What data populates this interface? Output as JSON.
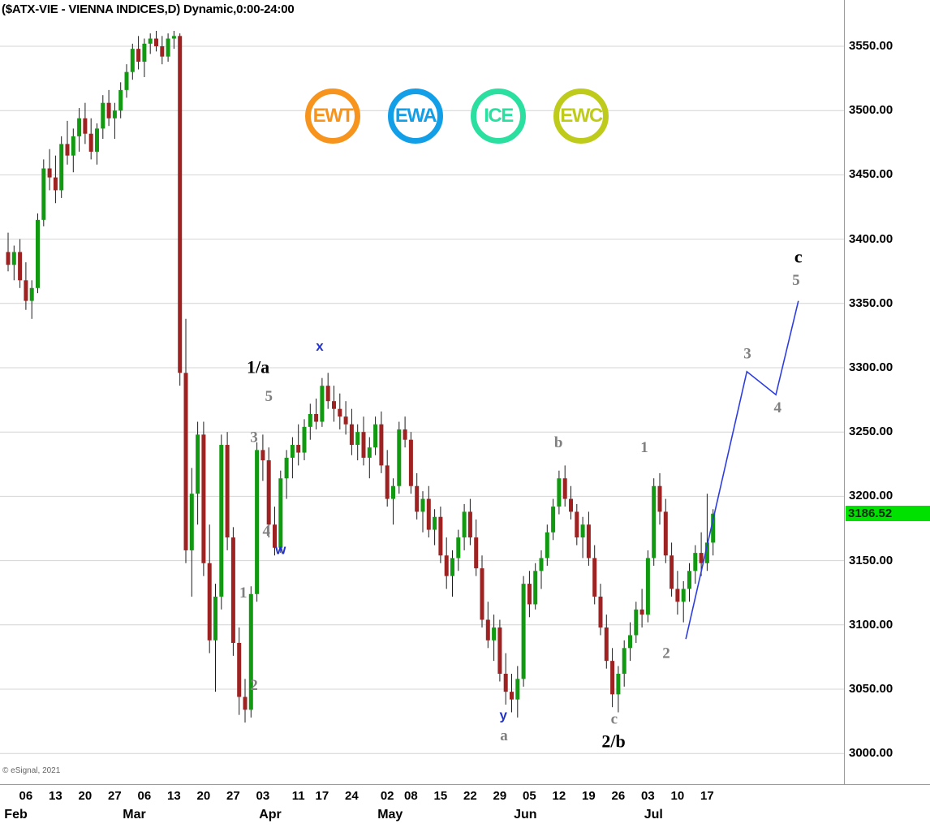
{
  "title": "($ATX-VIE - VIENNA INDICES,D) Dynamic,0:00-24:00",
  "copyright": "© eSignal, 2021",
  "logos": [
    {
      "label": "EWT",
      "color": "#F7941D"
    },
    {
      "label": "EWA",
      "color": "#129FE8"
    },
    {
      "label": "ICE",
      "color": "#2BDFA0"
    },
    {
      "label": "EWC",
      "color": "#BFCB1B"
    }
  ],
  "price_tag": {
    "value": "3186.52",
    "bg": "#00E100",
    "fg": "#002b00"
  },
  "colors": {
    "up": "#119a11",
    "down": "#9e2222",
    "wick": "#1c1c1c",
    "grid": "#d4d4d4",
    "projection": "#2d3de0",
    "label_gray": "#808080",
    "label_blue": "#2233cc",
    "label_black": "#000000"
  },
  "chart_data": {
    "type": "candlestick",
    "symbol": "$ATX-VIE",
    "name": "VIENNA INDICES",
    "interval": "D",
    "session": "0:00-24:00",
    "last_price": 3186.52,
    "y_axis": {
      "ticks": [
        3550,
        3500,
        3450,
        3400,
        3350,
        3300,
        3250,
        3200,
        3150,
        3100,
        3050,
        3000
      ],
      "format": "0.00"
    },
    "x_axis": {
      "week_ticks": [
        {
          "label": "06",
          "day": 3
        },
        {
          "label": "13",
          "day": 8
        },
        {
          "label": "20",
          "day": 13
        },
        {
          "label": "27",
          "day": 18
        },
        {
          "label": "06",
          "day": 23
        },
        {
          "label": "13",
          "day": 28
        },
        {
          "label": "20",
          "day": 33
        },
        {
          "label": "27",
          "day": 38
        },
        {
          "label": "03",
          "day": 43
        },
        {
          "label": "11",
          "day": 49
        },
        {
          "label": "17",
          "day": 53
        },
        {
          "label": "24",
          "day": 58
        },
        {
          "label": "02",
          "day": 64
        },
        {
          "label": "08",
          "day": 68
        },
        {
          "label": "15",
          "day": 73
        },
        {
          "label": "22",
          "day": 78
        },
        {
          "label": "29",
          "day": 83
        },
        {
          "label": "05",
          "day": 88
        },
        {
          "label": "12",
          "day": 93
        },
        {
          "label": "19",
          "day": 98
        },
        {
          "label": "26",
          "day": 103
        },
        {
          "label": "03",
          "day": 108
        },
        {
          "label": "10",
          "day": 113
        },
        {
          "label": "17",
          "day": 118
        }
      ],
      "months": [
        {
          "label": "Feb",
          "day": 1
        },
        {
          "label": "Mar",
          "day": 21
        },
        {
          "label": "Apr",
          "day": 44
        },
        {
          "label": "May",
          "day": 64
        },
        {
          "label": "Jun",
          "day": 87
        },
        {
          "label": "Jul",
          "day": 109
        }
      ]
    },
    "candles": [
      [
        3390,
        3405,
        3375,
        3380
      ],
      [
        3380,
        3395,
        3368,
        3390
      ],
      [
        3390,
        3400,
        3362,
        3368
      ],
      [
        3368,
        3382,
        3345,
        3352
      ],
      [
        3352,
        3368,
        3338,
        3362
      ],
      [
        3362,
        3420,
        3358,
        3415
      ],
      [
        3415,
        3462,
        3410,
        3455
      ],
      [
        3455,
        3470,
        3438,
        3448
      ],
      [
        3448,
        3465,
        3428,
        3438
      ],
      [
        3438,
        3480,
        3432,
        3474
      ],
      [
        3474,
        3492,
        3458,
        3465
      ],
      [
        3465,
        3486,
        3452,
        3480
      ],
      [
        3480,
        3502,
        3468,
        3494
      ],
      [
        3494,
        3506,
        3474,
        3482
      ],
      [
        3482,
        3494,
        3462,
        3468
      ],
      [
        3468,
        3490,
        3458,
        3486
      ],
      [
        3486,
        3512,
        3478,
        3506
      ],
      [
        3506,
        3516,
        3488,
        3494
      ],
      [
        3494,
        3506,
        3478,
        3500
      ],
      [
        3500,
        3522,
        3494,
        3516
      ],
      [
        3516,
        3536,
        3510,
        3530
      ],
      [
        3530,
        3552,
        3524,
        3548
      ],
      [
        3548,
        3558,
        3532,
        3538
      ],
      [
        3538,
        3556,
        3526,
        3552
      ],
      [
        3552,
        3560,
        3544,
        3556
      ],
      [
        3556,
        3562,
        3546,
        3550
      ],
      [
        3550,
        3558,
        3536,
        3542
      ],
      [
        3542,
        3560,
        3538,
        3556
      ],
      [
        3556,
        3562,
        3548,
        3558
      ],
      [
        3558,
        3560,
        3286,
        3296
      ],
      [
        3296,
        3338,
        3148,
        3158
      ],
      [
        3158,
        3222,
        3122,
        3202
      ],
      [
        3202,
        3258,
        3178,
        3248
      ],
      [
        3248,
        3258,
        3138,
        3148
      ],
      [
        3148,
        3178,
        3078,
        3088
      ],
      [
        3088,
        3132,
        3048,
        3122
      ],
      [
        3122,
        3248,
        3112,
        3240
      ],
      [
        3240,
        3250,
        3158,
        3168
      ],
      [
        3168,
        3176,
        3076,
        3086
      ],
      [
        3086,
        3098,
        3030,
        3044
      ],
      [
        3044,
        3058,
        3024,
        3034
      ],
      [
        3034,
        3130,
        3028,
        3124
      ],
      [
        3124,
        3242,
        3118,
        3236
      ],
      [
        3236,
        3248,
        3212,
        3228
      ],
      [
        3228,
        3238,
        3168,
        3178
      ],
      [
        3178,
        3192,
        3154,
        3160
      ],
      [
        3160,
        3220,
        3156,
        3214
      ],
      [
        3214,
        3236,
        3198,
        3230
      ],
      [
        3230,
        3246,
        3214,
        3240
      ],
      [
        3240,
        3256,
        3224,
        3234
      ],
      [
        3234,
        3260,
        3228,
        3254
      ],
      [
        3254,
        3272,
        3244,
        3264
      ],
      [
        3264,
        3276,
        3252,
        3258
      ],
      [
        3258,
        3292,
        3254,
        3286
      ],
      [
        3286,
        3296,
        3268,
        3274
      ],
      [
        3274,
        3286,
        3258,
        3268
      ],
      [
        3268,
        3280,
        3252,
        3262
      ],
      [
        3262,
        3274,
        3248,
        3256
      ],
      [
        3256,
        3268,
        3232,
        3240
      ],
      [
        3240,
        3256,
        3228,
        3250
      ],
      [
        3250,
        3262,
        3224,
        3230
      ],
      [
        3230,
        3246,
        3214,
        3238
      ],
      [
        3238,
        3262,
        3232,
        3256
      ],
      [
        3256,
        3266,
        3218,
        3224
      ],
      [
        3224,
        3236,
        3192,
        3198
      ],
      [
        3198,
        3214,
        3178,
        3208
      ],
      [
        3208,
        3258,
        3202,
        3252
      ],
      [
        3252,
        3262,
        3238,
        3244
      ],
      [
        3244,
        3250,
        3202,
        3208
      ],
      [
        3208,
        3218,
        3182,
        3188
      ],
      [
        3188,
        3204,
        3172,
        3198
      ],
      [
        3198,
        3208,
        3168,
        3174
      ],
      [
        3174,
        3190,
        3162,
        3184
      ],
      [
        3184,
        3192,
        3148,
        3154
      ],
      [
        3154,
        3168,
        3128,
        3138
      ],
      [
        3138,
        3158,
        3122,
        3152
      ],
      [
        3152,
        3174,
        3142,
        3168
      ],
      [
        3168,
        3194,
        3158,
        3188
      ],
      [
        3188,
        3198,
        3162,
        3168
      ],
      [
        3168,
        3182,
        3138,
        3144
      ],
      [
        3144,
        3154,
        3098,
        3104
      ],
      [
        3104,
        3118,
        3082,
        3088
      ],
      [
        3088,
        3108,
        3072,
        3098
      ],
      [
        3098,
        3104,
        3056,
        3062
      ],
      [
        3062,
        3078,
        3038,
        3048
      ],
      [
        3048,
        3062,
        3032,
        3042
      ],
      [
        3042,
        3068,
        3028,
        3058
      ],
      [
        3058,
        3138,
        3052,
        3132
      ],
      [
        3132,
        3142,
        3106,
        3116
      ],
      [
        3116,
        3148,
        3112,
        3142
      ],
      [
        3142,
        3158,
        3128,
        3152
      ],
      [
        3152,
        3178,
        3146,
        3172
      ],
      [
        3172,
        3198,
        3166,
        3192
      ],
      [
        3192,
        3220,
        3186,
        3214
      ],
      [
        3214,
        3224,
        3192,
        3198
      ],
      [
        3198,
        3208,
        3182,
        3188
      ],
      [
        3188,
        3194,
        3162,
        3168
      ],
      [
        3168,
        3184,
        3152,
        3178
      ],
      [
        3178,
        3188,
        3146,
        3152
      ],
      [
        3152,
        3162,
        3116,
        3122
      ],
      [
        3122,
        3132,
        3092,
        3098
      ],
      [
        3098,
        3108,
        3066,
        3072
      ],
      [
        3072,
        3082,
        3036,
        3046
      ],
      [
        3046,
        3068,
        3032,
        3062
      ],
      [
        3062,
        3088,
        3052,
        3082
      ],
      [
        3082,
        3102,
        3072,
        3092
      ],
      [
        3092,
        3118,
        3086,
        3112
      ],
      [
        3112,
        3128,
        3098,
        3108
      ],
      [
        3108,
        3158,
        3102,
        3152
      ],
      [
        3152,
        3214,
        3146,
        3208
      ],
      [
        3208,
        3218,
        3178,
        3188
      ],
      [
        3188,
        3198,
        3148,
        3154
      ],
      [
        3154,
        3164,
        3122,
        3128
      ],
      [
        3128,
        3142,
        3108,
        3118
      ],
      [
        3118,
        3134,
        3102,
        3128
      ],
      [
        3128,
        3148,
        3118,
        3142
      ],
      [
        3142,
        3162,
        3132,
        3156
      ],
      [
        3156,
        3172,
        3138,
        3148
      ],
      [
        3148,
        3202,
        3142,
        3164
      ],
      [
        3164,
        3190,
        3154,
        3186.52
      ]
    ],
    "overlay": {
      "projection_line": [
        [
          114.4,
          3089
        ],
        [
          124.7,
          3297
        ],
        [
          129.6,
          3279
        ],
        [
          133.4,
          3352
        ]
      ],
      "wave_labels": [
        {
          "text": "1/a",
          "day": 42.2,
          "price": 3299,
          "style": "black"
        },
        {
          "text": "5",
          "day": 44.0,
          "price": 3277,
          "style": "gray"
        },
        {
          "text": "3",
          "day": 41.5,
          "price": 3245,
          "style": "gray"
        },
        {
          "text": "4",
          "day": 43.6,
          "price": 3172,
          "style": "gray"
        },
        {
          "text": "w",
          "day": 46.0,
          "price": 3158,
          "style": "blue"
        },
        {
          "text": "1",
          "day": 39.7,
          "price": 3124,
          "style": "gray"
        },
        {
          "text": "2",
          "day": 41.5,
          "price": 3052,
          "style": "gray"
        },
        {
          "text": "x",
          "day": 52.6,
          "price": 3316,
          "style": "blue"
        },
        {
          "text": "y",
          "day": 83.6,
          "price": 3029,
          "style": "blue"
        },
        {
          "text": "a",
          "day": 83.7,
          "price": 3013,
          "style": "gray"
        },
        {
          "text": "b",
          "day": 92.9,
          "price": 3241,
          "style": "gray"
        },
        {
          "text": "c",
          "day": 102.3,
          "price": 3026,
          "style": "gray"
        },
        {
          "text": "2/b",
          "day": 102.2,
          "price": 3008,
          "style": "black"
        },
        {
          "text": "1",
          "day": 107.4,
          "price": 3237,
          "style": "gray"
        },
        {
          "text": "2",
          "day": 111.1,
          "price": 3077,
          "style": "gray"
        },
        {
          "text": "3",
          "day": 124.8,
          "price": 3310,
          "style": "gray"
        },
        {
          "text": "4",
          "day": 129.9,
          "price": 3268,
          "style": "gray"
        },
        {
          "text": "5",
          "day": 133.0,
          "price": 3367,
          "style": "gray"
        },
        {
          "text": "c",
          "day": 133.4,
          "price": 3385,
          "style": "black"
        }
      ]
    }
  }
}
